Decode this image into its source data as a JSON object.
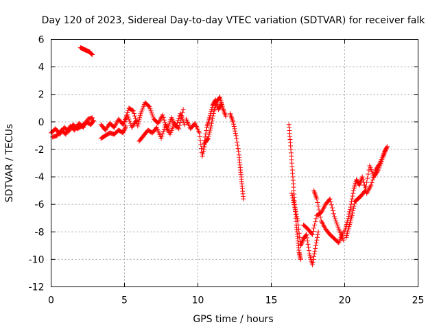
{
  "chart_data": {
    "type": "scatter",
    "title": "Day 120 of 2023, Sidereal Day-to-day VTEC variation (SDTVAR) for receiver falk",
    "xlabel": "GPS time / hours",
    "ylabel": "SDTVAR / TECUs",
    "xlim": [
      0,
      25
    ],
    "ylim": [
      -12,
      6
    ],
    "xticks": [
      "0",
      "5",
      "10",
      "15",
      "20",
      "25"
    ],
    "yticks": [
      "-12",
      "-10",
      "-8",
      "-6",
      "-4",
      "-2",
      "0",
      "2",
      "4",
      "6"
    ],
    "grid": true,
    "marker": "plus",
    "series_color": "#ff0000",
    "series": [
      {
        "name": "SDTVAR",
        "segments": [
          [
            [
              0.0,
              -0.8
            ],
            [
              0.3,
              -0.5
            ],
            [
              0.6,
              -0.9
            ],
            [
              0.9,
              -0.4
            ],
            [
              1.2,
              -0.7
            ],
            [
              1.5,
              -0.2
            ],
            [
              1.8,
              -0.5
            ],
            [
              2.1,
              -0.3
            ],
            [
              2.4,
              0.0
            ],
            [
              2.7,
              -0.2
            ],
            [
              2.9,
              0.1
            ]
          ],
          [
            [
              0.1,
              -1.1
            ],
            [
              0.4,
              -1.0
            ],
            [
              0.7,
              -0.6
            ],
            [
              1.0,
              -0.9
            ],
            [
              1.3,
              -0.3
            ],
            [
              1.6,
              -0.6
            ],
            [
              1.9,
              -0.1
            ],
            [
              2.2,
              -0.4
            ],
            [
              2.5,
              0.2
            ],
            [
              2.8,
              0.3
            ]
          ],
          [
            [
              2.0,
              5.4
            ],
            [
              2.2,
              5.3
            ],
            [
              2.4,
              5.2
            ],
            [
              2.6,
              5.1
            ],
            [
              2.8,
              4.9
            ]
          ],
          [
            [
              3.4,
              -0.2
            ],
            [
              3.7,
              -0.6
            ],
            [
              4.0,
              -0.1
            ],
            [
              4.3,
              -0.4
            ],
            [
              4.6,
              0.2
            ],
            [
              4.9,
              -0.2
            ],
            [
              5.2,
              0.5
            ],
            [
              5.5,
              -0.4
            ],
            [
              5.8,
              0.1
            ]
          ],
          [
            [
              3.4,
              -1.2
            ],
            [
              3.7,
              -1.0
            ],
            [
              4.0,
              -0.8
            ],
            [
              4.3,
              -0.9
            ],
            [
              4.6,
              -0.6
            ],
            [
              4.9,
              -0.8
            ],
            [
              5.1,
              -0.3
            ]
          ],
          [
            [
              5.0,
              0.0
            ],
            [
              5.3,
              1.0
            ],
            [
              5.6,
              0.8
            ],
            [
              5.9,
              -0.3
            ],
            [
              6.1,
              0.6
            ],
            [
              6.4,
              1.4
            ],
            [
              6.7,
              1.1
            ],
            [
              7.0,
              0.2
            ],
            [
              7.3,
              -0.1
            ],
            [
              7.6,
              0.5
            ],
            [
              7.9,
              -0.6
            ],
            [
              8.2,
              0.3
            ],
            [
              8.5,
              -0.4
            ],
            [
              8.8,
              0.6
            ],
            [
              9.1,
              -0.2
            ]
          ],
          [
            [
              6.0,
              -1.4
            ],
            [
              6.3,
              -1.0
            ],
            [
              6.6,
              -0.6
            ],
            [
              6.9,
              -0.8
            ],
            [
              7.2,
              -0.4
            ],
            [
              7.5,
              -1.2
            ],
            [
              7.8,
              -0.2
            ],
            [
              8.1,
              -0.9
            ],
            [
              8.4,
              -0.1
            ],
            [
              8.7,
              -0.5
            ],
            [
              9.0,
              0.9
            ]
          ],
          [
            [
              9.2,
              0.2
            ],
            [
              9.5,
              -0.5
            ],
            [
              9.8,
              -0.1
            ],
            [
              10.1,
              -0.8
            ],
            [
              10.3,
              -2.5
            ],
            [
              10.5,
              -1.5
            ],
            [
              10.7,
              -1.2
            ],
            [
              10.9,
              -0.3
            ],
            [
              11.1,
              0.8
            ],
            [
              11.3,
              1.5
            ],
            [
              11.5,
              1.8
            ],
            [
              11.7,
              1.0
            ],
            [
              11.9,
              0.4
            ]
          ],
          [
            [
              10.4,
              -1.8
            ],
            [
              10.6,
              -0.4
            ],
            [
              10.8,
              0.3
            ],
            [
              11.0,
              1.2
            ],
            [
              11.2,
              1.6
            ],
            [
              11.4,
              0.9
            ],
            [
              11.6,
              1.3
            ]
          ],
          [
            [
              12.2,
              0.6
            ],
            [
              12.4,
              0.0
            ],
            [
              12.6,
              -1.0
            ],
            [
              12.8,
              -2.4
            ],
            [
              12.9,
              -3.5
            ],
            [
              13.0,
              -4.5
            ],
            [
              13.1,
              -5.6
            ]
          ],
          [
            [
              16.2,
              -0.2
            ],
            [
              16.3,
              -1.5
            ],
            [
              16.4,
              -3.0
            ],
            [
              16.5,
              -4.5
            ],
            [
              16.6,
              -6.0
            ],
            [
              16.7,
              -7.5
            ],
            [
              16.8,
              -8.5
            ],
            [
              16.9,
              -9.5
            ],
            [
              17.0,
              -10.0
            ]
          ],
          [
            [
              16.4,
              -5.2
            ],
            [
              16.6,
              -6.2
            ],
            [
              16.8,
              -7.2
            ],
            [
              17.0,
              -9.0
            ],
            [
              17.2,
              -8.5
            ],
            [
              17.4,
              -8.2
            ],
            [
              17.6,
              -9.6
            ],
            [
              17.8,
              -10.4
            ],
            [
              18.0,
              -9.2
            ],
            [
              18.2,
              -8.0
            ]
          ],
          [
            [
              17.2,
              -7.5
            ],
            [
              17.5,
              -7.8
            ],
            [
              17.8,
              -8.2
            ],
            [
              18.1,
              -6.8
            ],
            [
              18.4,
              -6.6
            ],
            [
              18.7,
              -6.0
            ],
            [
              19.0,
              -5.6
            ],
            [
              19.3,
              -6.9
            ],
            [
              19.6,
              -7.8
            ],
            [
              19.9,
              -8.6
            ]
          ],
          [
            [
              17.9,
              -5.0
            ],
            [
              18.1,
              -5.6
            ],
            [
              18.4,
              -7.2
            ],
            [
              18.7,
              -7.8
            ],
            [
              19.0,
              -8.2
            ],
            [
              19.3,
              -8.5
            ],
            [
              19.6,
              -8.8
            ],
            [
              19.9,
              -8.0
            ]
          ],
          [
            [
              20.0,
              -8.0
            ],
            [
              20.2,
              -7.2
            ],
            [
              20.4,
              -6.2
            ],
            [
              20.6,
              -5.0
            ],
            [
              20.8,
              -4.2
            ],
            [
              21.0,
              -4.6
            ],
            [
              21.2,
              -4.0
            ],
            [
              21.5,
              -5.2
            ],
            [
              21.8,
              -4.6
            ],
            [
              22.1,
              -3.5
            ],
            [
              22.4,
              -3.0
            ],
            [
              22.7,
              -2.2
            ],
            [
              22.9,
              -1.8
            ]
          ],
          [
            [
              20.1,
              -8.4
            ],
            [
              20.3,
              -7.6
            ],
            [
              20.5,
              -6.8
            ],
            [
              20.7,
              -5.8
            ],
            [
              20.9,
              -5.6
            ],
            [
              21.1,
              -5.4
            ],
            [
              21.4,
              -5.0
            ],
            [
              21.7,
              -3.2
            ],
            [
              22.0,
              -4.0
            ],
            [
              22.3,
              -3.5
            ],
            [
              22.6,
              -2.6
            ],
            [
              22.8,
              -2.0
            ]
          ]
        ]
      }
    ]
  }
}
